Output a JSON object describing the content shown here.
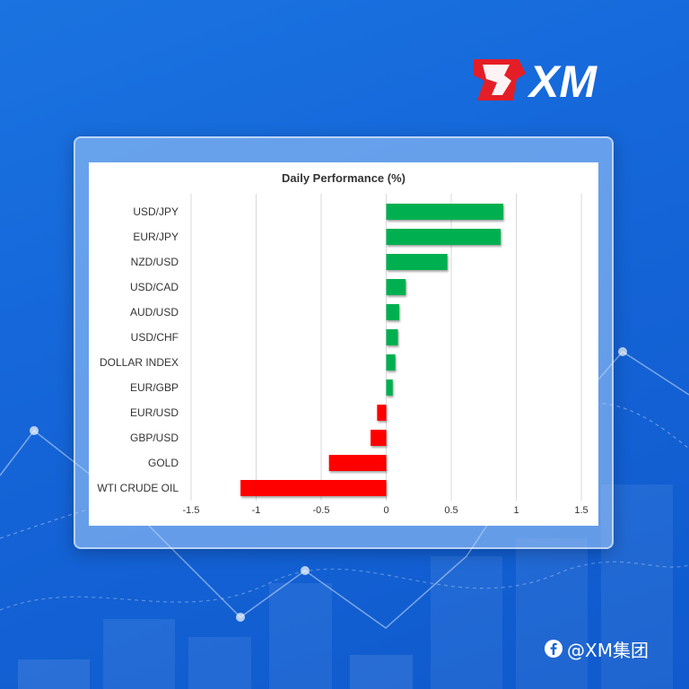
{
  "brand": {
    "logo_text": "XM",
    "colors": {
      "red": "#e41e26",
      "white": "#ffffff"
    }
  },
  "watermark": {
    "icon": "facebook-icon",
    "text": "@XM集团"
  },
  "chart_data": {
    "type": "bar",
    "orientation": "horizontal",
    "title": "Daily Performance (%)",
    "categories": [
      "USD/JPY",
      "EUR/JPY",
      "NZD/USD",
      "USD/CAD",
      "AUD/USD",
      "USD/CHF",
      "DOLLAR INDEX",
      "EUR/GBP",
      "EUR/USD",
      "GBP/USD",
      "GOLD",
      "WTI CRUDE OIL"
    ],
    "values": [
      0.9,
      0.88,
      0.47,
      0.15,
      0.1,
      0.09,
      0.07,
      0.05,
      -0.07,
      -0.12,
      -0.44,
      -1.12
    ],
    "xlim": [
      -1.5,
      1.5
    ],
    "xticks": [
      "-1.5",
      "-1",
      "-0.5",
      "0",
      "0.5",
      "1",
      "1.5"
    ],
    "xtick_values": [
      -1.5,
      -1,
      -0.5,
      0,
      0.5,
      1,
      1.5
    ],
    "grid": true,
    "colors": {
      "positive": "#00b050",
      "negative": "#ff0000"
    }
  }
}
